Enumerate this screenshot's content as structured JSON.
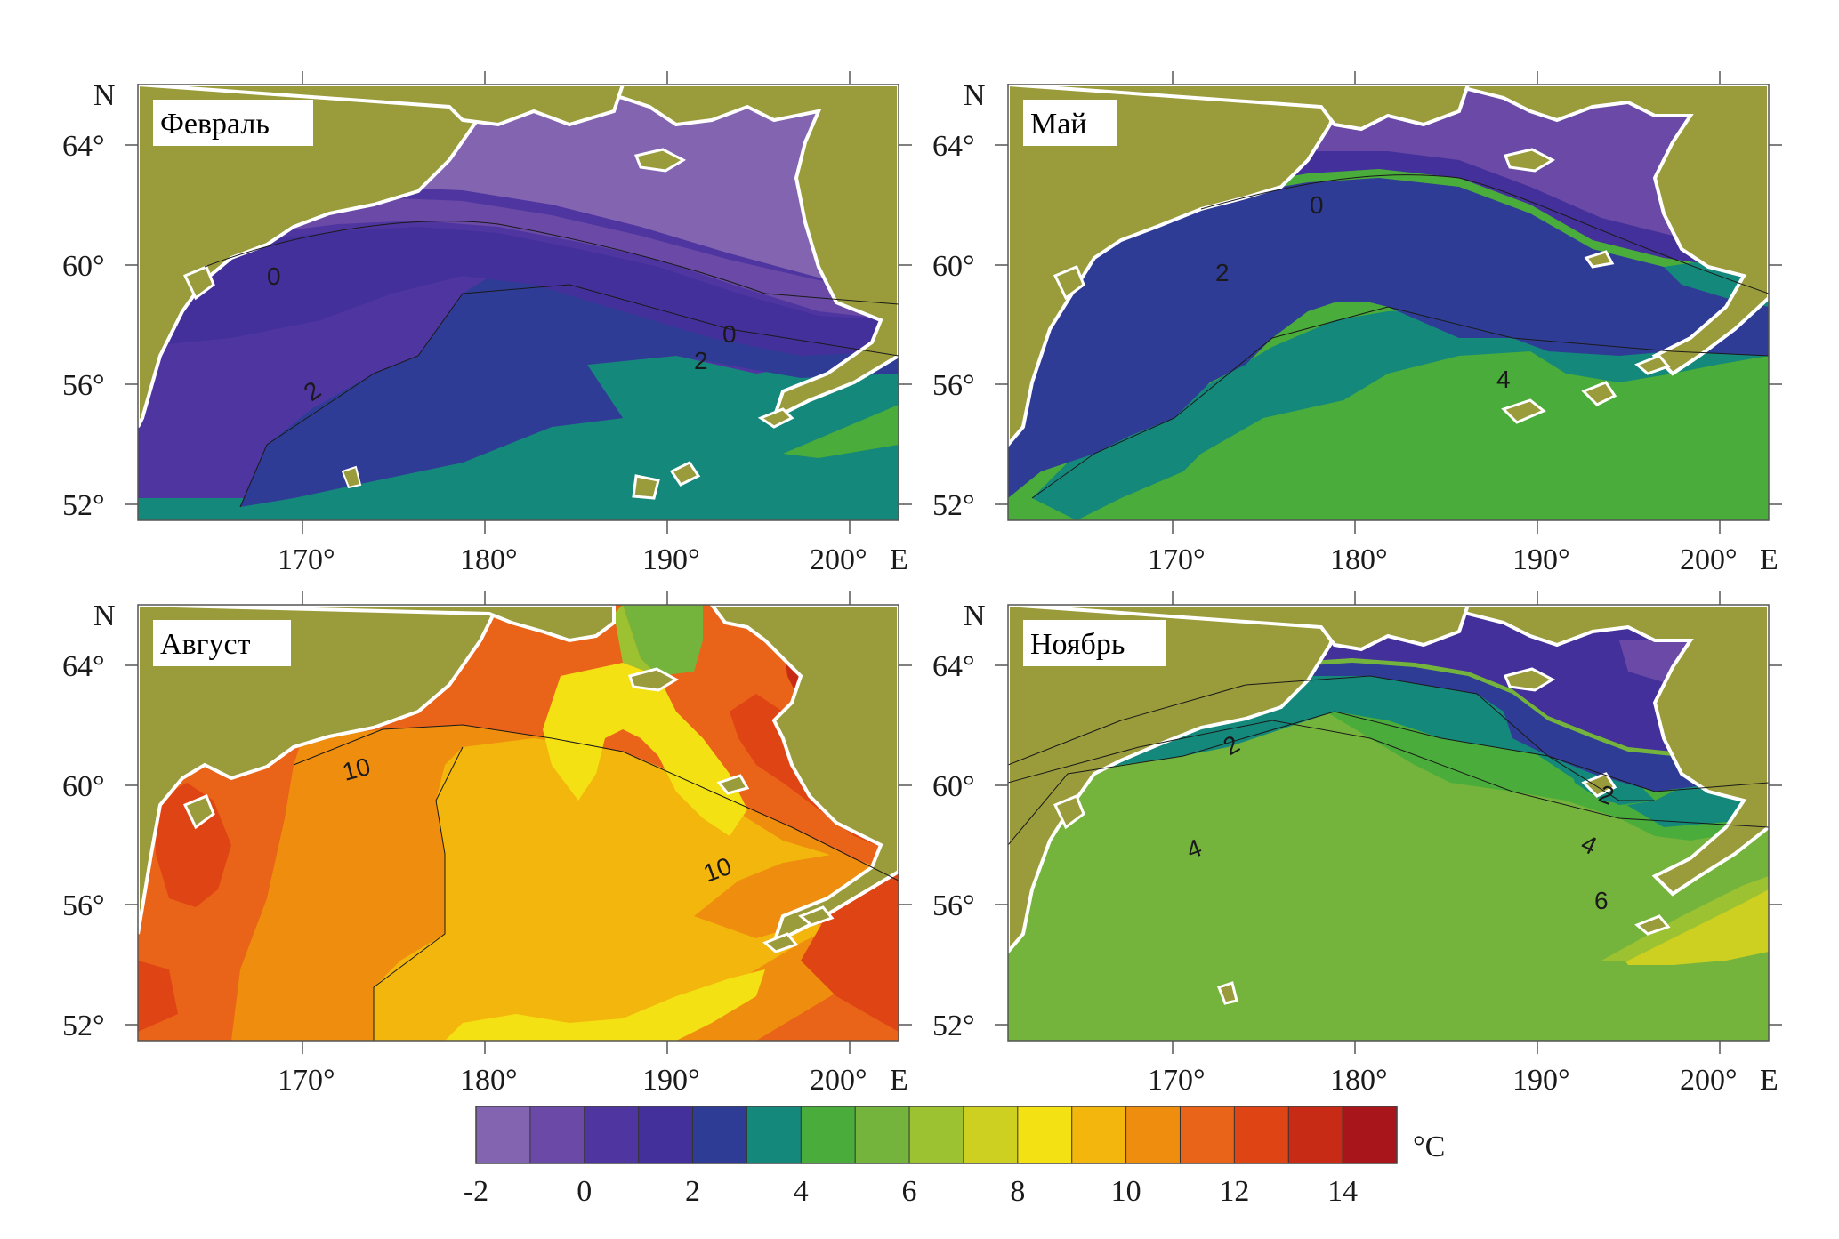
{
  "panels": [
    {
      "id": "feb",
      "title": "Февраль",
      "contour_labels": [
        "0",
        "2",
        "0",
        "2"
      ]
    },
    {
      "id": "may",
      "title": "Май",
      "contour_labels": [
        "0",
        "2",
        "4"
      ]
    },
    {
      "id": "aug",
      "title": "Август",
      "contour_labels": [
        "10",
        "10"
      ]
    },
    {
      "id": "nov",
      "title": "Ноябрь",
      "contour_labels": [
        "2",
        "2",
        "4",
        "4",
        "6"
      ]
    }
  ],
  "axes": {
    "lat_ticks": [
      "64°",
      "60°",
      "56°",
      "52°"
    ],
    "lon_ticks": [
      "170°",
      "180°",
      "190°",
      "200°"
    ],
    "north_label": "N",
    "east_label": "E"
  },
  "colorbar": {
    "unit": "°C",
    "tick_labels": [
      "-2",
      "0",
      "2",
      "4",
      "6",
      "8",
      "10",
      "12",
      "14"
    ],
    "colors": [
      "#8264b0",
      "#6a4aa6",
      "#4f35a0",
      "#43309a",
      "#2f3c96",
      "#14887a",
      "#4aac3a",
      "#74b43c",
      "#9cc232",
      "#cdd020",
      "#f4e114",
      "#f3b60c",
      "#ef8d0e",
      "#e96318",
      "#df4514",
      "#c72b15",
      "#a8161b"
    ]
  },
  "palette": {
    "land": "#9a9b3a",
    "coast": "#ffffff"
  }
}
